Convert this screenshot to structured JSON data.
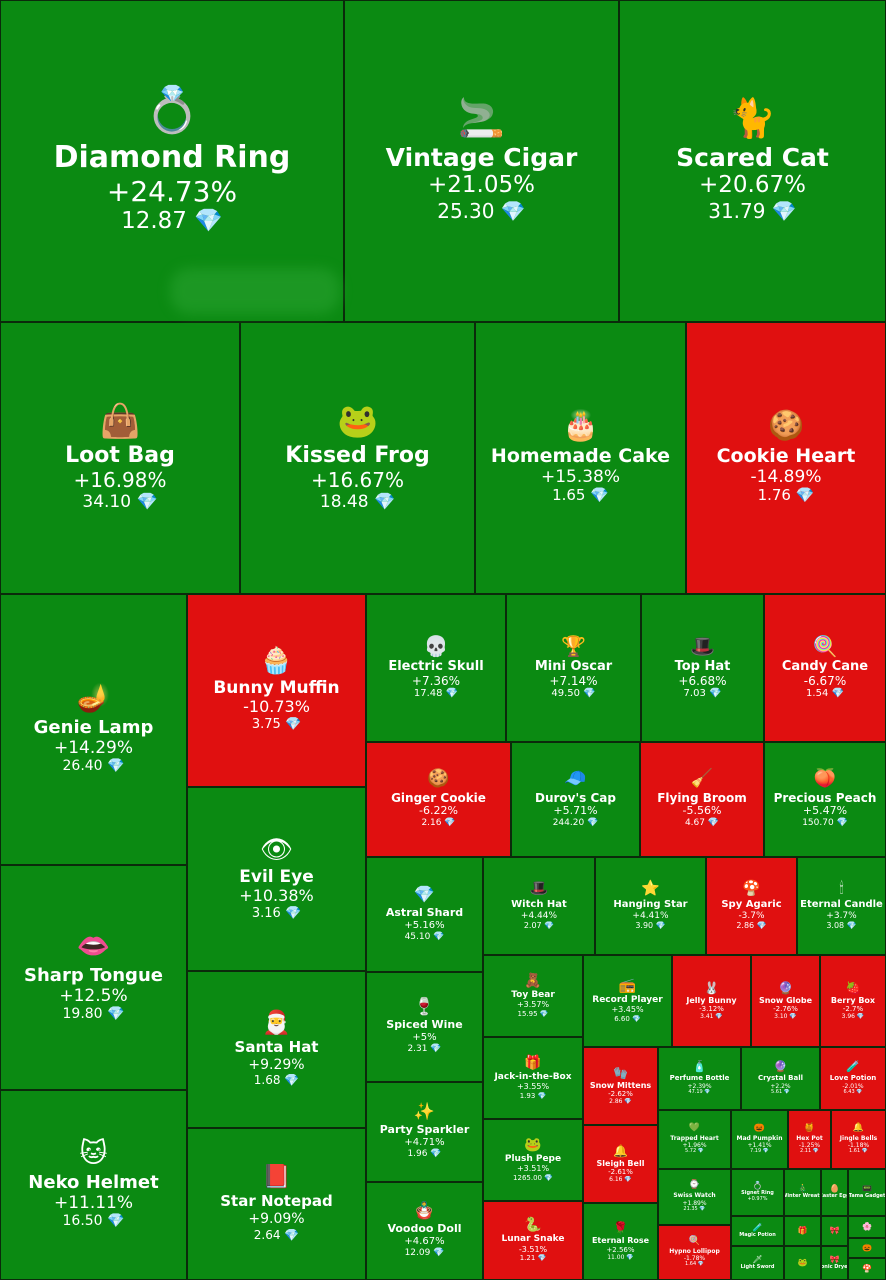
{
  "chart_data": {
    "type": "treemap",
    "colors": {
      "up": "#0b8a12",
      "down": "#e01010"
    },
    "currency_icon": "diamond-icon",
    "items": [
      {
        "name": "Diamond Ring",
        "change": "+24.73%",
        "price": "12.87",
        "dir": "up",
        "icon": "💍"
      },
      {
        "name": "Vintage Cigar",
        "change": "+21.05%",
        "price": "25.30",
        "dir": "up",
        "icon": "🚬"
      },
      {
        "name": "Scared Cat",
        "change": "+20.67%",
        "price": "31.79",
        "dir": "up",
        "icon": "🐈"
      },
      {
        "name": "Loot Bag",
        "change": "+16.98%",
        "price": "34.10",
        "dir": "up",
        "icon": "👜"
      },
      {
        "name": "Kissed Frog",
        "change": "+16.67%",
        "price": "18.48",
        "dir": "up",
        "icon": "🐸"
      },
      {
        "name": "Homemade Cake",
        "change": "+15.38%",
        "price": "1.65",
        "dir": "up",
        "icon": "🎂"
      },
      {
        "name": "Cookie Heart",
        "change": "-14.89%",
        "price": "1.76",
        "dir": "down",
        "icon": "🍪"
      },
      {
        "name": "Genie Lamp",
        "change": "+14.29%",
        "price": "26.40",
        "dir": "up",
        "icon": "🪔"
      },
      {
        "name": "Bunny Muffin",
        "change": "-10.73%",
        "price": "3.75",
        "dir": "down",
        "icon": "🧁"
      },
      {
        "name": "Electric Skull",
        "change": "+7.36%",
        "price": "17.48",
        "dir": "up",
        "icon": "💀"
      },
      {
        "name": "Mini Oscar",
        "change": "+7.14%",
        "price": "49.50",
        "dir": "up",
        "icon": "🏆"
      },
      {
        "name": "Top Hat",
        "change": "+6.68%",
        "price": "7.03",
        "dir": "up",
        "icon": "🎩"
      },
      {
        "name": "Candy Cane",
        "change": "-6.67%",
        "price": "1.54",
        "dir": "down",
        "icon": "🍭"
      },
      {
        "name": "Ginger Cookie",
        "change": "-6.22%",
        "price": "2.16",
        "dir": "down",
        "icon": "🍪"
      },
      {
        "name": "Durov's Cap",
        "change": "+5.71%",
        "price": "244.20",
        "dir": "up",
        "icon": "🧢"
      },
      {
        "name": "Flying Broom",
        "change": "-5.56%",
        "price": "4.67",
        "dir": "down",
        "icon": "🧹"
      },
      {
        "name": "Precious Peach",
        "change": "+5.47%",
        "price": "150.70",
        "dir": "up",
        "icon": "🍑"
      },
      {
        "name": "Evil Eye",
        "change": "+10.38%",
        "price": "3.16",
        "dir": "up",
        "icon": "👁"
      },
      {
        "name": "Astral Shard",
        "change": "+5.16%",
        "price": "45.10",
        "dir": "up",
        "icon": "💎"
      },
      {
        "name": "Witch Hat",
        "change": "+4.44%",
        "price": "2.07",
        "dir": "up",
        "icon": "🎩"
      },
      {
        "name": "Hanging Star",
        "change": "+4.41%",
        "price": "3.90",
        "dir": "up",
        "icon": "⭐"
      },
      {
        "name": "Spy Agaric",
        "change": "-3.7%",
        "price": "2.86",
        "dir": "down",
        "icon": "🍄"
      },
      {
        "name": "Eternal Candle",
        "change": "+3.7%",
        "price": "3.08",
        "dir": "up",
        "icon": "🕯"
      },
      {
        "name": "Sharp Tongue",
        "change": "+12.5%",
        "price": "19.80",
        "dir": "up",
        "icon": "👄"
      },
      {
        "name": "Santa Hat",
        "change": "+9.29%",
        "price": "1.68",
        "dir": "up",
        "icon": "🎅"
      },
      {
        "name": "Spiced Wine",
        "change": "+5%",
        "price": "2.31",
        "dir": "up",
        "icon": "🍷"
      },
      {
        "name": "Toy Bear",
        "change": "+3.57%",
        "price": "15.95",
        "dir": "up",
        "icon": "🧸"
      },
      {
        "name": "Record Player",
        "change": "+3.45%",
        "price": "6.60",
        "dir": "up",
        "icon": "📻"
      },
      {
        "name": "Jelly Bunny",
        "change": "-3.12%",
        "price": "3.41",
        "dir": "down",
        "icon": "🐰"
      },
      {
        "name": "Snow Globe",
        "change": "-2.76%",
        "price": "3.10",
        "dir": "down",
        "icon": "🔮"
      },
      {
        "name": "Berry Box",
        "change": "-2.7%",
        "price": "3.96",
        "dir": "down",
        "icon": "🍓"
      },
      {
        "name": "Jack-in-the-Box",
        "change": "+3.55%",
        "price": "1.93",
        "dir": "up",
        "icon": "🎁"
      },
      {
        "name": "Snow Mittens",
        "change": "-2.62%",
        "price": "2.86",
        "dir": "down",
        "icon": "🧤"
      },
      {
        "name": "Perfume Bottle",
        "change": "+2.39%",
        "price": "47.19",
        "dir": "up",
        "icon": "🧴"
      },
      {
        "name": "Crystal Ball",
        "change": "+2.2%",
        "price": "5.61",
        "dir": "up",
        "icon": "🔮"
      },
      {
        "name": "Love Potion",
        "change": "-2.01%",
        "price": "6.43",
        "dir": "down",
        "icon": "🧪"
      },
      {
        "name": "Party Sparkler",
        "change": "+4.71%",
        "price": "1.96",
        "dir": "up",
        "icon": "✨"
      },
      {
        "name": "Trapped Heart",
        "change": "+1.96%",
        "price": "5.72",
        "dir": "up",
        "icon": "💚"
      },
      {
        "name": "Mad Pumpkin",
        "change": "+1.41%",
        "price": "7.19",
        "dir": "up",
        "icon": "🎃"
      },
      {
        "name": "Hex Pot",
        "change": "-1.25%",
        "price": "2.11",
        "dir": "down",
        "icon": "🍯"
      },
      {
        "name": "Jingle Bells",
        "change": "-1.18%",
        "price": "1.61",
        "dir": "down",
        "icon": "🔔"
      },
      {
        "name": "Neko Helmet",
        "change": "+11.11%",
        "price": "16.50",
        "dir": "up",
        "icon": "🐱"
      },
      {
        "name": "Star Notepad",
        "change": "+9.09%",
        "price": "2.64",
        "dir": "up",
        "icon": "📕"
      },
      {
        "name": "Plush Pepe",
        "change": "+3.51%",
        "price": "1265.00",
        "dir": "up",
        "icon": "🐸"
      },
      {
        "name": "Sleigh Bell",
        "change": "-2.61%",
        "price": "6.16",
        "dir": "down",
        "icon": "🔔"
      },
      {
        "name": "Swiss Watch",
        "change": "+1.89%",
        "price": "21.35",
        "dir": "up",
        "icon": "⌚"
      },
      {
        "name": "Signet Ring",
        "change": "+0.97%",
        "price": "",
        "dir": "up",
        "icon": "💍"
      },
      {
        "name": "Winter Wreath",
        "change": "",
        "price": "",
        "dir": "up",
        "icon": "🎄"
      },
      {
        "name": "Easter Egg",
        "change": "",
        "price": "",
        "dir": "up",
        "icon": "🥚"
      },
      {
        "name": "Tama Gadget",
        "change": "",
        "price": "",
        "dir": "up",
        "icon": "📟"
      },
      {
        "name": "Voodoo Doll",
        "change": "+4.67%",
        "price": "12.09",
        "dir": "up",
        "icon": "🪆"
      },
      {
        "name": "Lunar Snake",
        "change": "-3.51%",
        "price": "1.21",
        "dir": "down",
        "icon": "🐍"
      },
      {
        "name": "Eternal Rose",
        "change": "+2.56%",
        "price": "11.00",
        "dir": "up",
        "icon": "🌹"
      },
      {
        "name": "Hypno Lollipop",
        "change": "-1.78%",
        "price": "1.64",
        "dir": "down",
        "icon": "🍭"
      },
      {
        "name": "Magic Potion",
        "change": "",
        "price": "",
        "dir": "up",
        "icon": "🧪"
      },
      {
        "name": "Light Sword",
        "change": "",
        "price": "",
        "dir": "up",
        "icon": "🗡"
      },
      {
        "name": "",
        "change": "",
        "price": "",
        "dir": "up",
        "icon": "🎁"
      },
      {
        "name": "",
        "change": "",
        "price": "",
        "dir": "up",
        "icon": "🐸"
      },
      {
        "name": "",
        "change": "",
        "price": "",
        "dir": "up",
        "icon": "🎀"
      },
      {
        "name": "Ionic Dryer",
        "change": "",
        "price": "",
        "dir": "up",
        "icon": "🎀"
      },
      {
        "name": "",
        "change": "",
        "price": "",
        "dir": "up",
        "icon": "🌸"
      },
      {
        "name": "",
        "change": "",
        "price": "",
        "dir": "up",
        "icon": "🎃"
      },
      {
        "name": "",
        "change": "",
        "price": "",
        "dir": "up",
        "icon": "🍄"
      }
    ]
  }
}
